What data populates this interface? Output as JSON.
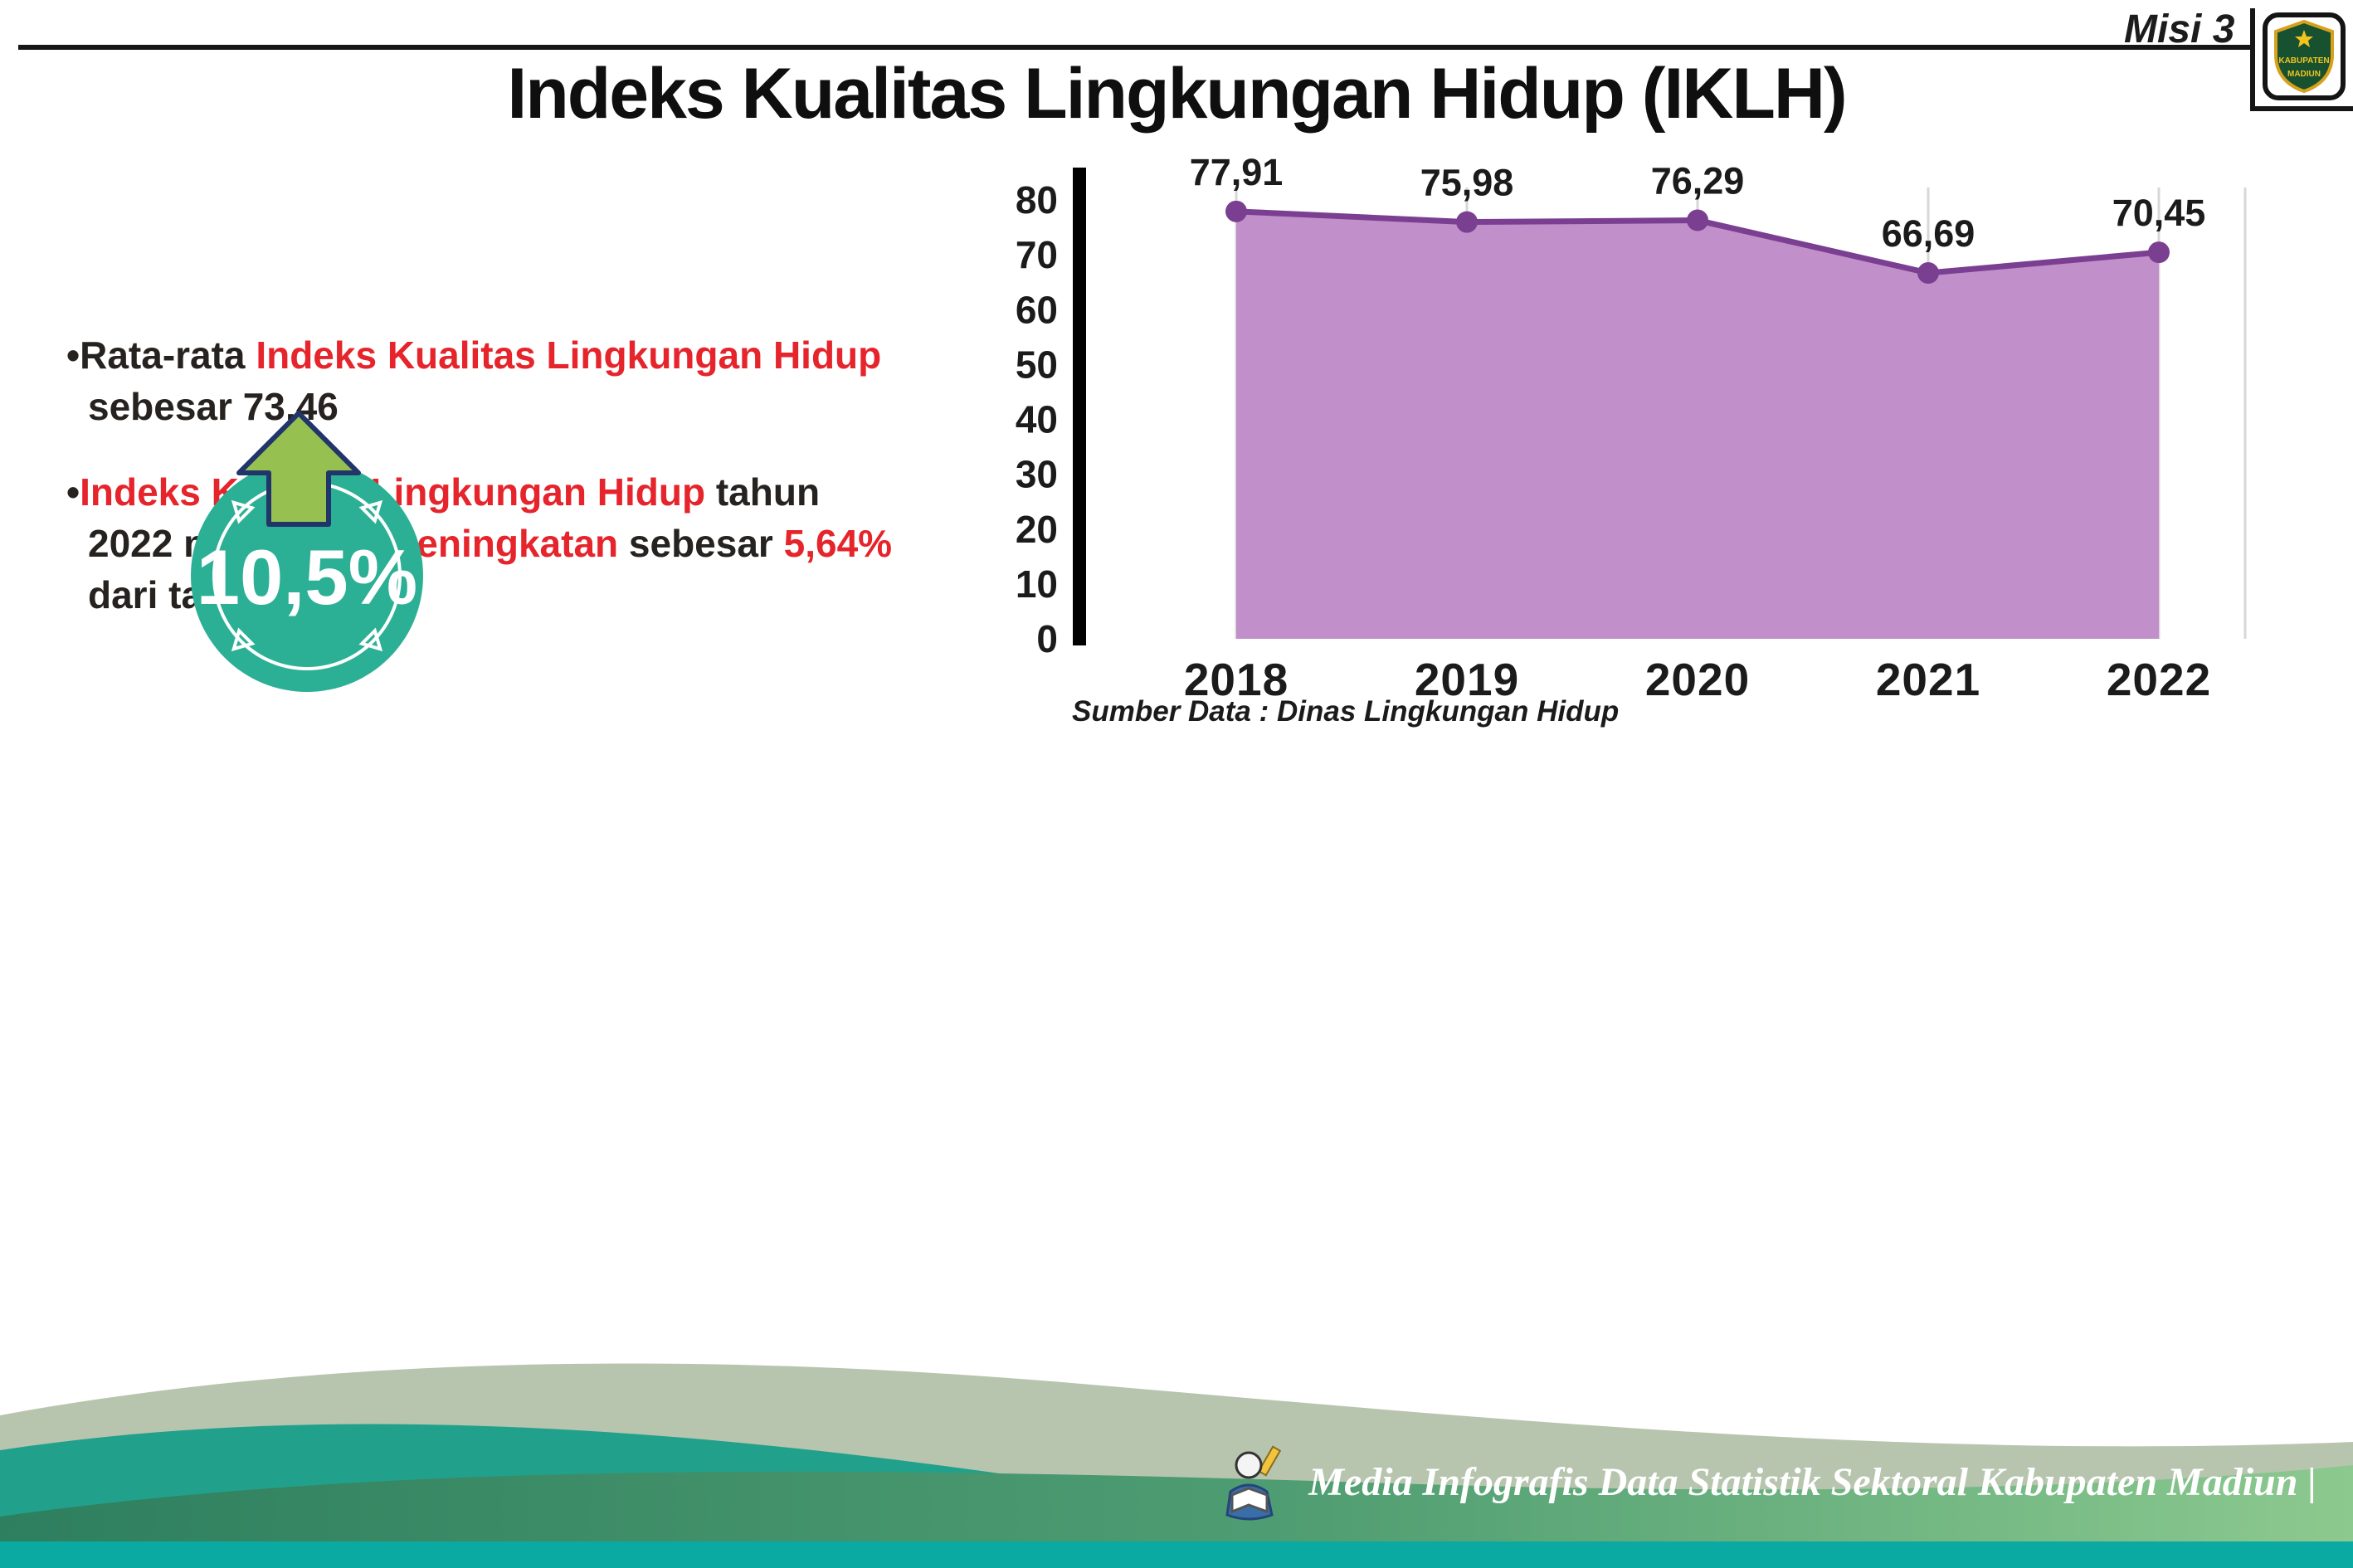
{
  "page": {
    "badge": "Misi 3",
    "title": "Indeks Kualitas Lingkungan Hidup (IKLH)"
  },
  "logo": {
    "name": "Lambang Kabupaten Madiun",
    "top_text": "KABUPATEN",
    "bottom_text": "MADIUN"
  },
  "ui": {
    "bullet_marker": "•"
  },
  "bullets": [
    {
      "segments": [
        {
          "text": "Rata-rata ",
          "style": "dark"
        },
        {
          "text": "Indeks Kualitas Lingkungan Hidup",
          "style": "red"
        },
        {
          "text": " sebesar 73,46",
          "style": "dark"
        }
      ]
    },
    {
      "segments": [
        {
          "text": "Indeks Kualitas Lingkungan Hidup",
          "style": "red"
        },
        {
          "text": " tahun 2022 mengalami ",
          "style": "dark"
        },
        {
          "text": "peningkatan",
          "style": "red"
        },
        {
          "text": " sebesar ",
          "style": "dark"
        },
        {
          "text": "5,64%",
          "style": "red"
        },
        {
          "text": " dari tahun 2021",
          "style": "dark"
        }
      ]
    }
  ],
  "highlight_badge": {
    "value": "10,5%",
    "circle_color": "#2cb095",
    "arrow_color": "#96c04f",
    "arrow_outline": "#21356b"
  },
  "chart_data": {
    "type": "area",
    "title": "",
    "categories": [
      "2018",
      "2019",
      "2020",
      "2021",
      "2022"
    ],
    "values": [
      77.91,
      75.98,
      76.29,
      66.69,
      70.45
    ],
    "value_labels": [
      "77,91",
      "75,98",
      "76,29",
      "66,69",
      "70,45"
    ],
    "ylim": [
      0,
      80
    ],
    "yticks": [
      0,
      10,
      20,
      30,
      40,
      50,
      60,
      70,
      80
    ],
    "grid": "vertical-light",
    "legend": "none",
    "fill_color": "#c18fca",
    "line_color": "#7b3f92",
    "axis_color": "#000000",
    "source": "Sumber Data : Dinas Lingkungan Hidup"
  },
  "footer": {
    "text": "Media Infografis Data Statistik Sektoral Kabupaten Madiun |",
    "colors": {
      "sage": "#b7c5af",
      "teal_wave": "#21a18c",
      "band_dark": "#2e7f5f",
      "band_light": "#8cc98f",
      "bottom_bar": "#0aa9a1"
    }
  }
}
